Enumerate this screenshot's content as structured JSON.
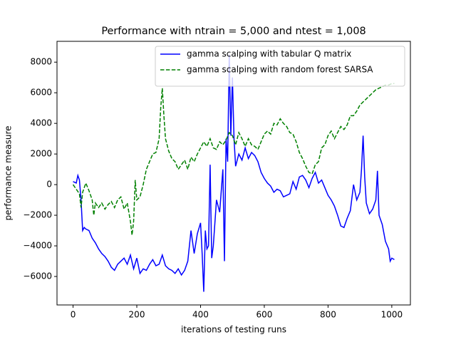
{
  "chart_data": {
    "type": "line",
    "title": "Performance with ntrain = 5,000 and ntest = 1,008",
    "xlabel": "iterations of testing runs",
    "ylabel": "performance measure",
    "xlim": [
      -50.4,
      1058.4
    ],
    "ylim": [
      -7860,
      9360
    ],
    "xticks": [
      0,
      200,
      400,
      600,
      800,
      1000
    ],
    "yticks": [
      {
        "value": -6000,
        "label": "−6000"
      },
      {
        "value": -4000,
        "label": "−4000"
      },
      {
        "value": -2000,
        "label": "−2000"
      },
      0,
      2000,
      4000,
      6000,
      8000
    ],
    "legend": "upper right",
    "series": [
      {
        "name": "gamma scalping with tabular Q matrix",
        "color": "#0000ff",
        "dash": "solid",
        "x": [
          0,
          10,
          15,
          20,
          25,
          30,
          35,
          40,
          50,
          60,
          70,
          80,
          90,
          100,
          110,
          120,
          130,
          140,
          150,
          160,
          170,
          180,
          190,
          200,
          210,
          220,
          230,
          240,
          250,
          260,
          270,
          280,
          290,
          300,
          310,
          320,
          330,
          340,
          350,
          360,
          370,
          380,
          390,
          400,
          405,
          410,
          415,
          420,
          425,
          430,
          435,
          440,
          450,
          460,
          470,
          475,
          480,
          485,
          490,
          495,
          500,
          505,
          510,
          520,
          530,
          540,
          550,
          560,
          570,
          580,
          590,
          600,
          610,
          620,
          630,
          640,
          650,
          660,
          670,
          680,
          690,
          700,
          710,
          720,
          730,
          740,
          750,
          760,
          770,
          780,
          790,
          800,
          810,
          820,
          830,
          840,
          850,
          860,
          870,
          880,
          890,
          900,
          905,
          910,
          915,
          920,
          930,
          940,
          950,
          955,
          960,
          970,
          980,
          990,
          995,
          1000,
          1008
        ],
        "values": [
          200,
          100,
          600,
          300,
          -1000,
          -3000,
          -2800,
          -2900,
          -3000,
          -3500,
          -3800,
          -4200,
          -4500,
          -4700,
          -5000,
          -5400,
          -5600,
          -5200,
          -5000,
          -4800,
          -5200,
          -4600,
          -5500,
          -4800,
          -5800,
          -5500,
          -5600,
          -5200,
          -4900,
          -5300,
          -5200,
          -4600,
          -5300,
          -5500,
          -5600,
          -5800,
          -5500,
          -5900,
          -5600,
          -5000,
          -3000,
          -4500,
          -3200,
          -2500,
          -4500,
          -7000,
          -3000,
          -4200,
          -4000,
          1300,
          -4800,
          -4000,
          -1000,
          -1800,
          1000,
          -5000,
          3000,
          1500,
          8500,
          3200,
          7000,
          3000,
          1200,
          2000,
          1600,
          2400,
          1700,
          2100,
          1900,
          1500,
          800,
          400,
          100,
          -100,
          -500,
          -300,
          -400,
          -800,
          -700,
          -600,
          200,
          -300,
          500,
          600,
          300,
          -200,
          400,
          800,
          100,
          300,
          -200,
          -700,
          -1000,
          -1400,
          -2000,
          -2700,
          -2800,
          -2200,
          -1700,
          0,
          -1000,
          -500,
          1000,
          3200,
          500,
          -1200,
          -1900,
          -1600,
          -1000,
          900,
          -2000,
          -2600,
          -3700,
          -4200,
          -5000,
          -4800,
          -4900
        ]
      },
      {
        "name": "gamma scalping with random forest SARSA",
        "color": "#008000",
        "dash": "dashed",
        "x": [
          0,
          10,
          20,
          25,
          30,
          40,
          50,
          60,
          65,
          70,
          80,
          90,
          100,
          110,
          120,
          130,
          140,
          150,
          160,
          170,
          180,
          185,
          190,
          195,
          200,
          210,
          220,
          230,
          240,
          250,
          260,
          270,
          275,
          280,
          285,
          290,
          300,
          310,
          320,
          330,
          340,
          350,
          360,
          370,
          380,
          390,
          400,
          410,
          420,
          430,
          440,
          450,
          460,
          470,
          480,
          490,
          500,
          510,
          520,
          530,
          540,
          550,
          560,
          570,
          580,
          590,
          600,
          610,
          620,
          630,
          640,
          650,
          660,
          670,
          680,
          690,
          700,
          710,
          720,
          730,
          740,
          750,
          760,
          770,
          780,
          790,
          800,
          810,
          820,
          830,
          840,
          850,
          860,
          870,
          880,
          890,
          900,
          910,
          920,
          930,
          940,
          950,
          960,
          970,
          980,
          990,
          1000,
          1008
        ],
        "values": [
          0,
          -300,
          -600,
          -1500,
          -500,
          100,
          -400,
          -1000,
          -2000,
          -1200,
          -1500,
          -1200,
          -1600,
          -1300,
          -1100,
          -1500,
          -1000,
          -800,
          -1600,
          -1200,
          -2400,
          -3300,
          -2400,
          300,
          -1000,
          -800,
          0,
          1000,
          1500,
          2000,
          2100,
          3000,
          5000,
          6300,
          4500,
          3000,
          2200,
          1700,
          1500,
          1000,
          1300,
          1600,
          1000,
          1800,
          1500,
          2000,
          2400,
          2800,
          2500,
          3000,
          2400,
          2300,
          2800,
          2600,
          2900,
          3400,
          3200,
          2600,
          3400,
          3000,
          2500,
          3000,
          2600,
          2500,
          2300,
          2800,
          3300,
          3500,
          3300,
          4000,
          3900,
          4300,
          4000,
          3800,
          3400,
          3300,
          2800,
          2100,
          1700,
          1200,
          800,
          700,
          1300,
          1500,
          2400,
          2600,
          3200,
          3500,
          3000,
          3400,
          3800,
          3600,
          3900,
          4500,
          4500,
          4800,
          5200,
          5400,
          5600,
          5800,
          6000,
          6200,
          6300,
          6400,
          6500,
          6500,
          6600,
          6600
        ]
      }
    ]
  }
}
